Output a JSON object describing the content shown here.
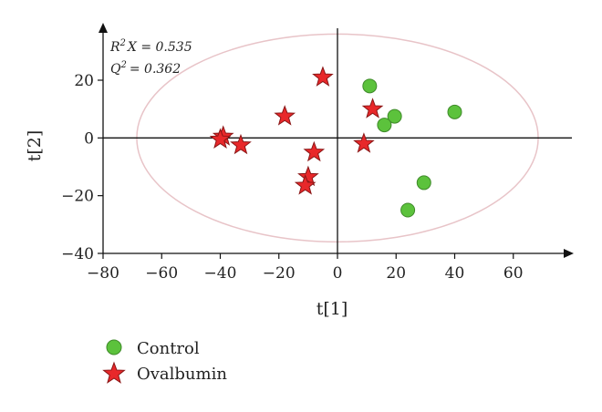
{
  "chart_data": {
    "type": "scatter",
    "xlabel": "t[1]",
    "ylabel": "t[2]",
    "xlim": [
      -80,
      80
    ],
    "ylim": [
      -40,
      38
    ],
    "x_ticks": [
      -80,
      -60,
      -40,
      -20,
      0,
      20,
      40,
      60
    ],
    "y_ticks": [
      -40,
      -20,
      0,
      20
    ],
    "x_tick_labels": [
      "−80",
      "−60",
      "−40",
      "−20",
      "0",
      "20",
      "40",
      "60"
    ],
    "y_tick_labels": [
      "−40",
      "−20",
      "0",
      "20"
    ],
    "annotations": {
      "r2x_label": "X = 0.535",
      "r2x_prefix": "R",
      "r2x_sup": "2",
      "q2_label": "= 0.362",
      "q2_prefix": "Q",
      "q2_sup": "2"
    },
    "confidence_ellipse": {
      "center": [
        0,
        0
      ],
      "semi_x": 68.5,
      "semi_y": 36,
      "color": "#e8c4c8"
    },
    "grid": false,
    "legend_position": "bottom-left",
    "series": [
      {
        "name": "Control",
        "marker": "circle",
        "color": "#5cc23c",
        "points": [
          [
            11,
            18
          ],
          [
            19.5,
            7.5
          ],
          [
            16,
            4.5
          ],
          [
            40,
            9
          ],
          [
            29.5,
            -15.5
          ],
          [
            24,
            -25
          ]
        ]
      },
      {
        "name": "Ovalbumin",
        "marker": "star",
        "color": "#e8282a",
        "points": [
          [
            -5,
            21
          ],
          [
            -18,
            7.5
          ],
          [
            12,
            10
          ],
          [
            9,
            -2
          ],
          [
            -8,
            -5
          ],
          [
            -10,
            -13.5
          ],
          [
            -11,
            -16.5
          ],
          [
            -33,
            -2.5
          ],
          [
            -39,
            0.5
          ],
          [
            -40,
            -0.5
          ]
        ]
      }
    ]
  }
}
